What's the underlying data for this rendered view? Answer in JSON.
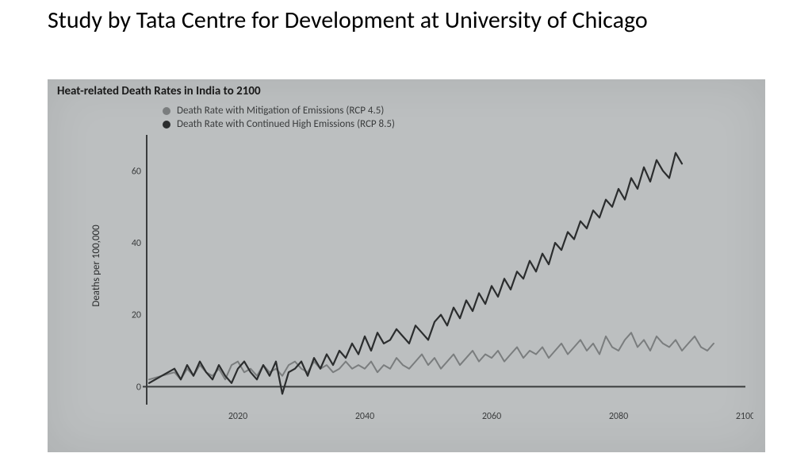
{
  "slide": {
    "title": "Study by Tata Centre for Development at University of Chicago",
    "title_fontsize": 30,
    "title_color": "#000000"
  },
  "chart": {
    "type": "line",
    "photo_bg": "#bcbfc0",
    "inner_title": "Heat-related Death Rates in India to 2100",
    "inner_title_color": "#1a1a1a",
    "inner_title_fontsize": 15,
    "ylabel": "Deaths per 100,000",
    "ylabel_color": "#2a2c2d",
    "ylabel_fontsize": 13,
    "axis_color": "#3a3c3d",
    "tick_color": "#3a3c3d",
    "tick_fontsize": 12,
    "xlim": [
      2005,
      2100
    ],
    "ylim": [
      -5,
      70
    ],
    "xticks": [
      2020,
      2040,
      2060,
      2080,
      2100
    ],
    "yticks": [
      0,
      20,
      40,
      60
    ],
    "legend": {
      "items": [
        {
          "label": "Death Rate with Mitigation of Emissions (RCP 4.5)",
          "color": "#7a7d7e"
        },
        {
          "label": "Death Rate with Continued High Emissions (RCP 8.5)",
          "color": "#2b2d2e"
        }
      ],
      "label_color": "#3a3c3d",
      "fontsize": 13
    },
    "series": [
      {
        "name": "rcp45",
        "color": "#7a7d7e",
        "width": 2.0,
        "points": [
          [
            2006,
            2
          ],
          [
            2008,
            3
          ],
          [
            2010,
            4
          ],
          [
            2011,
            2
          ],
          [
            2012,
            5
          ],
          [
            2013,
            3
          ],
          [
            2014,
            6
          ],
          [
            2015,
            4
          ],
          [
            2016,
            3
          ],
          [
            2017,
            5
          ],
          [
            2018,
            2
          ],
          [
            2019,
            6
          ],
          [
            2020,
            7
          ],
          [
            2021,
            4
          ],
          [
            2022,
            5
          ],
          [
            2023,
            3
          ],
          [
            2024,
            6
          ],
          [
            2025,
            4
          ],
          [
            2026,
            5
          ],
          [
            2027,
            3
          ],
          [
            2028,
            6
          ],
          [
            2029,
            7
          ],
          [
            2030,
            5
          ],
          [
            2031,
            4
          ],
          [
            2032,
            7
          ],
          [
            2033,
            5
          ],
          [
            2034,
            6
          ],
          [
            2035,
            4
          ],
          [
            2036,
            5
          ],
          [
            2037,
            7
          ],
          [
            2038,
            5
          ],
          [
            2039,
            6
          ],
          [
            2040,
            5
          ],
          [
            2041,
            7
          ],
          [
            2042,
            4
          ],
          [
            2043,
            6
          ],
          [
            2044,
            5
          ],
          [
            2045,
            8
          ],
          [
            2046,
            6
          ],
          [
            2047,
            5
          ],
          [
            2048,
            7
          ],
          [
            2049,
            9
          ],
          [
            2050,
            6
          ],
          [
            2051,
            8
          ],
          [
            2052,
            5
          ],
          [
            2053,
            7
          ],
          [
            2054,
            9
          ],
          [
            2055,
            6
          ],
          [
            2056,
            8
          ],
          [
            2057,
            10
          ],
          [
            2058,
            7
          ],
          [
            2059,
            9
          ],
          [
            2060,
            8
          ],
          [
            2061,
            10
          ],
          [
            2062,
            7
          ],
          [
            2063,
            9
          ],
          [
            2064,
            11
          ],
          [
            2065,
            8
          ],
          [
            2066,
            10
          ],
          [
            2067,
            9
          ],
          [
            2068,
            11
          ],
          [
            2069,
            8
          ],
          [
            2070,
            10
          ],
          [
            2071,
            12
          ],
          [
            2072,
            9
          ],
          [
            2073,
            11
          ],
          [
            2074,
            13
          ],
          [
            2075,
            10
          ],
          [
            2076,
            12
          ],
          [
            2077,
            9
          ],
          [
            2078,
            14
          ],
          [
            2079,
            11
          ],
          [
            2080,
            10
          ],
          [
            2081,
            13
          ],
          [
            2082,
            15
          ],
          [
            2083,
            11
          ],
          [
            2084,
            13
          ],
          [
            2085,
            10
          ],
          [
            2086,
            14
          ],
          [
            2087,
            12
          ],
          [
            2088,
            11
          ],
          [
            2089,
            13
          ],
          [
            2090,
            10
          ],
          [
            2091,
            12
          ],
          [
            2092,
            14
          ],
          [
            2093,
            11
          ],
          [
            2094,
            10
          ],
          [
            2095,
            12
          ]
        ]
      },
      {
        "name": "rcp85",
        "color": "#2b2d2e",
        "width": 2.2,
        "points": [
          [
            2006,
            1
          ],
          [
            2008,
            3
          ],
          [
            2010,
            5
          ],
          [
            2011,
            2
          ],
          [
            2012,
            6
          ],
          [
            2013,
            3
          ],
          [
            2014,
            7
          ],
          [
            2015,
            4
          ],
          [
            2016,
            2
          ],
          [
            2017,
            6
          ],
          [
            2018,
            3
          ],
          [
            2019,
            1
          ],
          [
            2020,
            5
          ],
          [
            2021,
            7
          ],
          [
            2022,
            4
          ],
          [
            2023,
            2
          ],
          [
            2024,
            6
          ],
          [
            2025,
            3
          ],
          [
            2026,
            7
          ],
          [
            2027,
            -2
          ],
          [
            2028,
            4
          ],
          [
            2029,
            5
          ],
          [
            2030,
            7
          ],
          [
            2031,
            3
          ],
          [
            2032,
            8
          ],
          [
            2033,
            5
          ],
          [
            2034,
            9
          ],
          [
            2035,
            6
          ],
          [
            2036,
            10
          ],
          [
            2037,
            8
          ],
          [
            2038,
            12
          ],
          [
            2039,
            9
          ],
          [
            2040,
            14
          ],
          [
            2041,
            10
          ],
          [
            2042,
            15
          ],
          [
            2043,
            12
          ],
          [
            2044,
            13
          ],
          [
            2045,
            16
          ],
          [
            2046,
            14
          ],
          [
            2047,
            12
          ],
          [
            2048,
            17
          ],
          [
            2049,
            15
          ],
          [
            2050,
            13
          ],
          [
            2051,
            18
          ],
          [
            2052,
            20
          ],
          [
            2053,
            17
          ],
          [
            2054,
            22
          ],
          [
            2055,
            19
          ],
          [
            2056,
            24
          ],
          [
            2057,
            21
          ],
          [
            2058,
            26
          ],
          [
            2059,
            23
          ],
          [
            2060,
            28
          ],
          [
            2061,
            25
          ],
          [
            2062,
            30
          ],
          [
            2063,
            27
          ],
          [
            2064,
            32
          ],
          [
            2065,
            30
          ],
          [
            2066,
            35
          ],
          [
            2067,
            32
          ],
          [
            2068,
            37
          ],
          [
            2069,
            34
          ],
          [
            2070,
            40
          ],
          [
            2071,
            38
          ],
          [
            2072,
            43
          ],
          [
            2073,
            41
          ],
          [
            2074,
            46
          ],
          [
            2075,
            44
          ],
          [
            2076,
            49
          ],
          [
            2077,
            47
          ],
          [
            2078,
            52
          ],
          [
            2079,
            50
          ],
          [
            2080,
            55
          ],
          [
            2081,
            52
          ],
          [
            2082,
            58
          ],
          [
            2083,
            55
          ],
          [
            2084,
            61
          ],
          [
            2085,
            57
          ],
          [
            2086,
            63
          ],
          [
            2087,
            60
          ],
          [
            2088,
            58
          ],
          [
            2089,
            65
          ],
          [
            2090,
            62
          ]
        ]
      }
    ]
  }
}
